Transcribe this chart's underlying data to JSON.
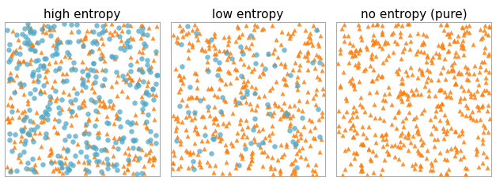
{
  "panels": [
    {
      "title": "high entropy",
      "n_orange": 320,
      "n_blue": 300,
      "seed": 42
    },
    {
      "title": "low entropy",
      "n_orange": 420,
      "n_blue": 70,
      "seed": 7
    },
    {
      "title": "no entropy (pure)",
      "n_orange": 500,
      "n_blue": 0,
      "seed": 99
    }
  ],
  "color_orange": "#ff7f0e",
  "color_blue": "#4fa8c8",
  "marker_orange": "^",
  "marker_blue": "o",
  "marker_size_orange": 18,
  "marker_size_blue": 22,
  "alpha_orange": 0.85,
  "alpha_blue": 0.75,
  "figsize": [
    6.27,
    2.3
  ],
  "dpi": 100,
  "title_fontsize": 11
}
